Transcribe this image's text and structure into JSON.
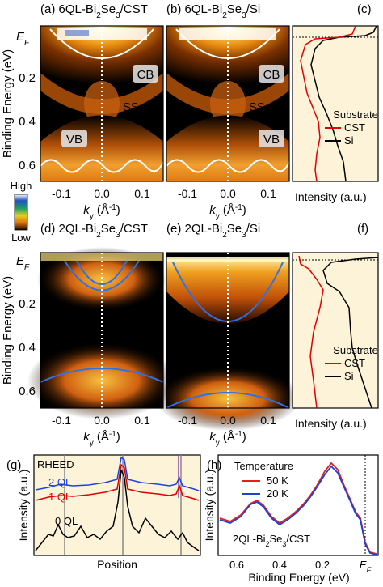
{
  "figure": {
    "panels": {
      "a": {
        "label": "(a)",
        "title_pre": "6QL-Bi",
        "title_sub1": "2",
        "title_mid": "Se",
        "title_sub2": "3",
        "title_post": "/CST"
      },
      "b": {
        "label": "(b)",
        "title_pre": "6QL-Bi",
        "title_sub1": "2",
        "title_mid": "Se",
        "title_sub2": "3",
        "title_post": "/Si"
      },
      "c": {
        "label": "(c)"
      },
      "d": {
        "label": "(d)",
        "title_pre": "2QL-Bi",
        "title_sub1": "2",
        "title_mid": "Se",
        "title_sub2": "3",
        "title_post": "/CST"
      },
      "e": {
        "label": "(e)",
        "title_pre": "2QL-Bi",
        "title_sub1": "2",
        "title_mid": "Se",
        "title_sub2": "3",
        "title_post": "/Si"
      },
      "f": {
        "label": "(f)"
      },
      "g": {
        "label": "(g)"
      },
      "h": {
        "label": "(h)"
      }
    },
    "band_labels": {
      "cb": "CB",
      "ss": "SS",
      "vb": "VB"
    },
    "axis": {
      "ylabel": "Binding Energy (eV)",
      "ef_main": "E",
      "ef_sub": "F",
      "kx_main": "k",
      "kx_sub": "y",
      "kx_unit_pre": "(Å",
      "kx_unit_sup": "-1",
      "kx_unit_post": ")",
      "xticks": [
        "-0.1",
        "0.0",
        "0.1"
      ],
      "yticks": [
        "0.2",
        "0.4",
        "0.6"
      ],
      "intensity": "Intensity (a.u.)"
    },
    "colorbar": {
      "high": "High",
      "low": "Low"
    },
    "legend_substrate": {
      "title": "Substrate",
      "items": [
        "CST",
        "Si"
      ]
    },
    "rheed": {
      "title": "RHEED",
      "labels": [
        "2 QL",
        "1 QL",
        "0 QL"
      ],
      "xlabel": "Position",
      "ylabel": "Intensity (a.u.)"
    },
    "temperature": {
      "title": "Temperature",
      "items": [
        "50 K",
        "20 K"
      ],
      "sample_pre": "2QL-Bi",
      "sample_sub1": "2",
      "sample_mid": "Se",
      "sample_sub2": "3",
      "sample_post": "/CST",
      "xlabel": "Binding Energy (eV)",
      "xticks": [
        "0.6",
        "0.4",
        "0.2"
      ],
      "ylabel": "Intensity (a.u.)"
    },
    "colors": {
      "cst": "#e00000",
      "si": "#000000",
      "t50": "#e02020",
      "t20": "#2040d0",
      "band6": "#ffffff",
      "band2": "#3070e0",
      "zero": "#ffffff"
    }
  }
}
